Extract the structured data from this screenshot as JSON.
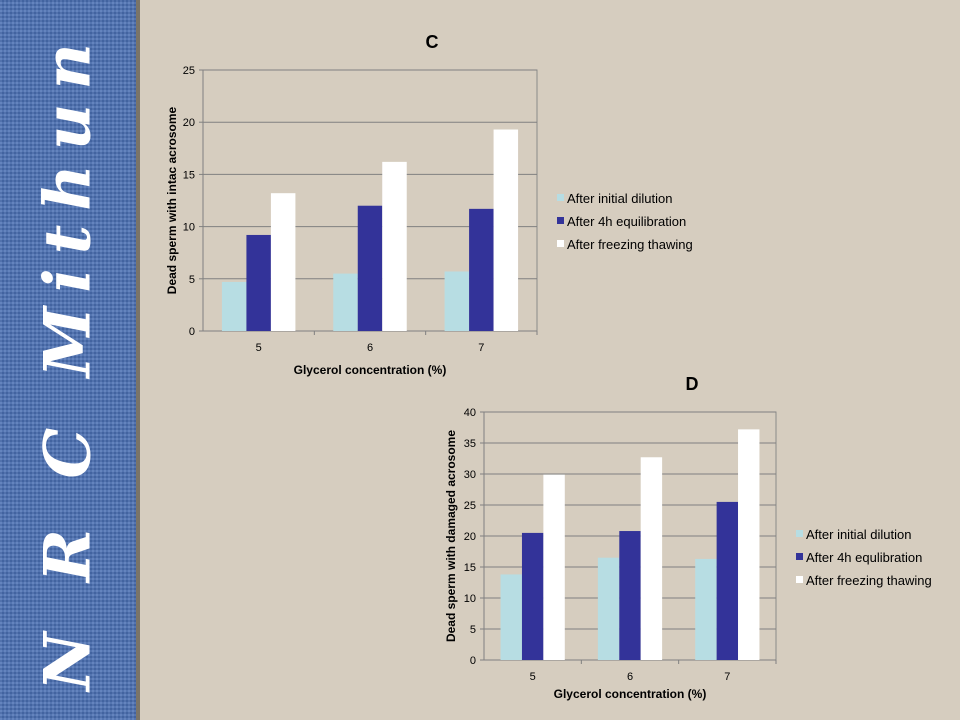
{
  "sidebar": {
    "text": "N R C Mithun"
  },
  "chart_data": [
    {
      "type": "bar",
      "title": "C",
      "xlabel": "Glycerol concentration (%)",
      "ylabel": "Dead sperm with intac acrosome",
      "categories": [
        "5",
        "6",
        "7"
      ],
      "ylim": [
        0,
        25
      ],
      "yticks": [
        0,
        5,
        10,
        15,
        20,
        25
      ],
      "grid": true,
      "legend_position": "right",
      "series": [
        {
          "name": "After initial dilution",
          "color": "#b7dde3",
          "values": [
            4.7,
            5.5,
            5.7
          ]
        },
        {
          "name": "After 4h equilibration",
          "color": "#333399",
          "values": [
            9.2,
            12.0,
            11.7
          ]
        },
        {
          "name": "After freezing thawing",
          "color": "#ffffff",
          "values": [
            13.2,
            16.2,
            19.3
          ]
        }
      ]
    },
    {
      "type": "bar",
      "title": "D",
      "xlabel": "Glycerol concentration (%)",
      "ylabel": "Dead sperm with damaged acrosome",
      "categories": [
        "5",
        "6",
        "7"
      ],
      "ylim": [
        0,
        40
      ],
      "yticks": [
        0,
        5,
        10,
        15,
        20,
        25,
        30,
        35,
        40
      ],
      "grid": true,
      "legend_position": "right",
      "series": [
        {
          "name": "After initial dilution",
          "color": "#b7dde3",
          "values": [
            13.8,
            16.5,
            16.3
          ]
        },
        {
          "name": "After 4h equlibration",
          "color": "#333399",
          "values": [
            20.5,
            20.8,
            25.5
          ]
        },
        {
          "name": "After freezing thawing",
          "color": "#ffffff",
          "values": [
            29.9,
            32.7,
            37.2
          ]
        }
      ]
    }
  ]
}
